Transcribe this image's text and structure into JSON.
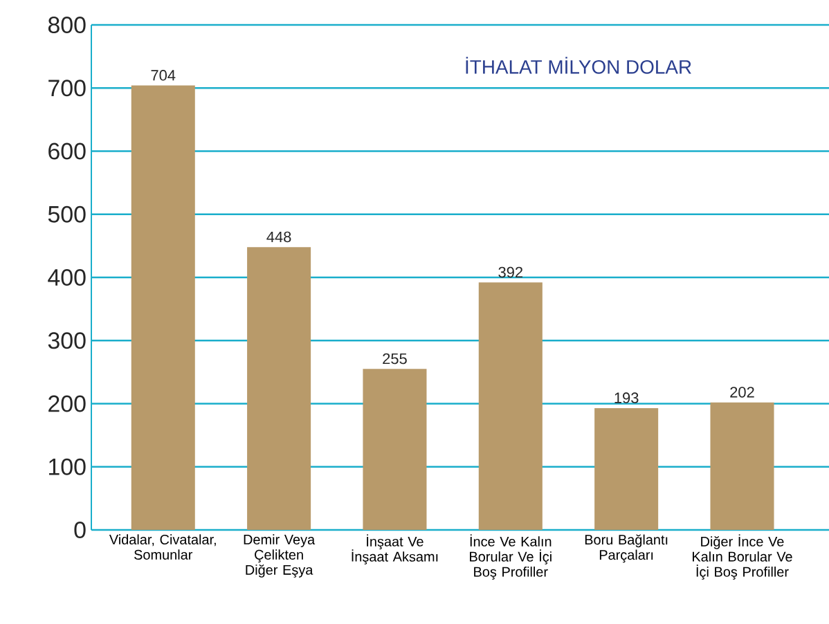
{
  "chart_data": {
    "type": "bar",
    "title": "İTHALAT MİLYON DOLAR",
    "categories": [
      "Vidalar, Civatalar, Somunlar",
      "Demir Veya Çelikten Diğer Eşya",
      "İnşaat Ve İnşaat Aksamı",
      "İnce Ve Kalın Borular Ve İçi Boş Profiller",
      "Boru Bağlantı Parçaları",
      "Diğer İnce Ve Kalın Borular Ve İçi Boş Profiller"
    ],
    "values": [
      704,
      448,
      255,
      392,
      193,
      202
    ],
    "color": "#b89a6a",
    "ylim": [
      0,
      800
    ],
    "yticks": [
      0,
      100,
      200,
      300,
      400,
      500,
      600,
      700,
      800
    ],
    "grid": "y",
    "data_labels": true
  }
}
